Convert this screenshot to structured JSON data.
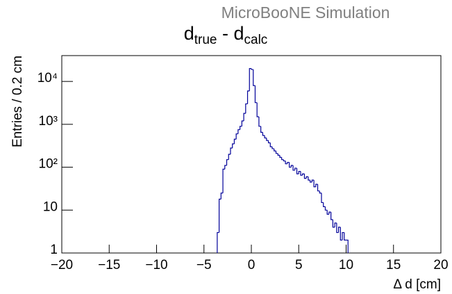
{
  "chart_data": {
    "type": "histogram",
    "header": "MicroBooNE Simulation",
    "title": [
      "d",
      "true",
      " - d",
      "calc"
    ],
    "x_label": "Δ d [cm]",
    "y_label": "Entries / 0.2 cm",
    "color": "#000099",
    "ylog": true,
    "bins": [
      -3.6,
      -3.4,
      -3.2,
      -3.0,
      -2.8,
      -2.6,
      -2.4,
      -2.2,
      -2.0,
      -1.8,
      -1.6,
      -1.4,
      -1.2,
      -1.0,
      -0.8,
      -0.6,
      -0.4,
      -0.2,
      0.0,
      0.2,
      0.4,
      0.6,
      0.8,
      1.0,
      1.2,
      1.4,
      1.6,
      1.8,
      2.0,
      2.2,
      2.4,
      2.6,
      2.8,
      3.0,
      3.2,
      3.4,
      3.6,
      3.8,
      4.0,
      4.2,
      4.4,
      4.6,
      4.8,
      5.0,
      5.2,
      5.4,
      5.6,
      5.8,
      6.0,
      6.2,
      6.4,
      6.6,
      6.8,
      7.0,
      7.2,
      7.4,
      7.6,
      7.8,
      8.0,
      8.2,
      8.4,
      8.6,
      8.8,
      9.0,
      9.2,
      9.4,
      9.6,
      9.8,
      10.0,
      10.2
    ],
    "values": [
      3,
      18,
      25,
      90,
      110,
      150,
      200,
      280,
      350,
      450,
      600,
      750,
      900,
      1200,
      1800,
      3000,
      6000,
      20000,
      19000,
      8000,
      3200,
      1500,
      900,
      650,
      550,
      480,
      420,
      370,
      300,
      270,
      240,
      210,
      190,
      170,
      150,
      140,
      120,
      130,
      100,
      110,
      85,
      95,
      70,
      80,
      65,
      70,
      55,
      60,
      50,
      45,
      50,
      35,
      40,
      28,
      25,
      15,
      12,
      10,
      8,
      9,
      6,
      4,
      5,
      3,
      4,
      2,
      3,
      2,
      2
    ],
    "xlim": [
      -20,
      20
    ],
    "xticks": [
      {
        "value": -20,
        "label": "−20"
      },
      {
        "value": -15,
        "label": "−15"
      },
      {
        "value": -10,
        "label": "−10"
      },
      {
        "value": -5,
        "label": "−5"
      },
      0,
      5,
      10,
      15,
      20
    ],
    "ylim": [
      1,
      40000
    ],
    "yticks": [
      1,
      10,
      {
        "value": 100,
        "label": "10²"
      },
      {
        "value": 1000,
        "label": "10³"
      },
      {
        "value": 10000,
        "label": "10⁴"
      }
    ]
  }
}
